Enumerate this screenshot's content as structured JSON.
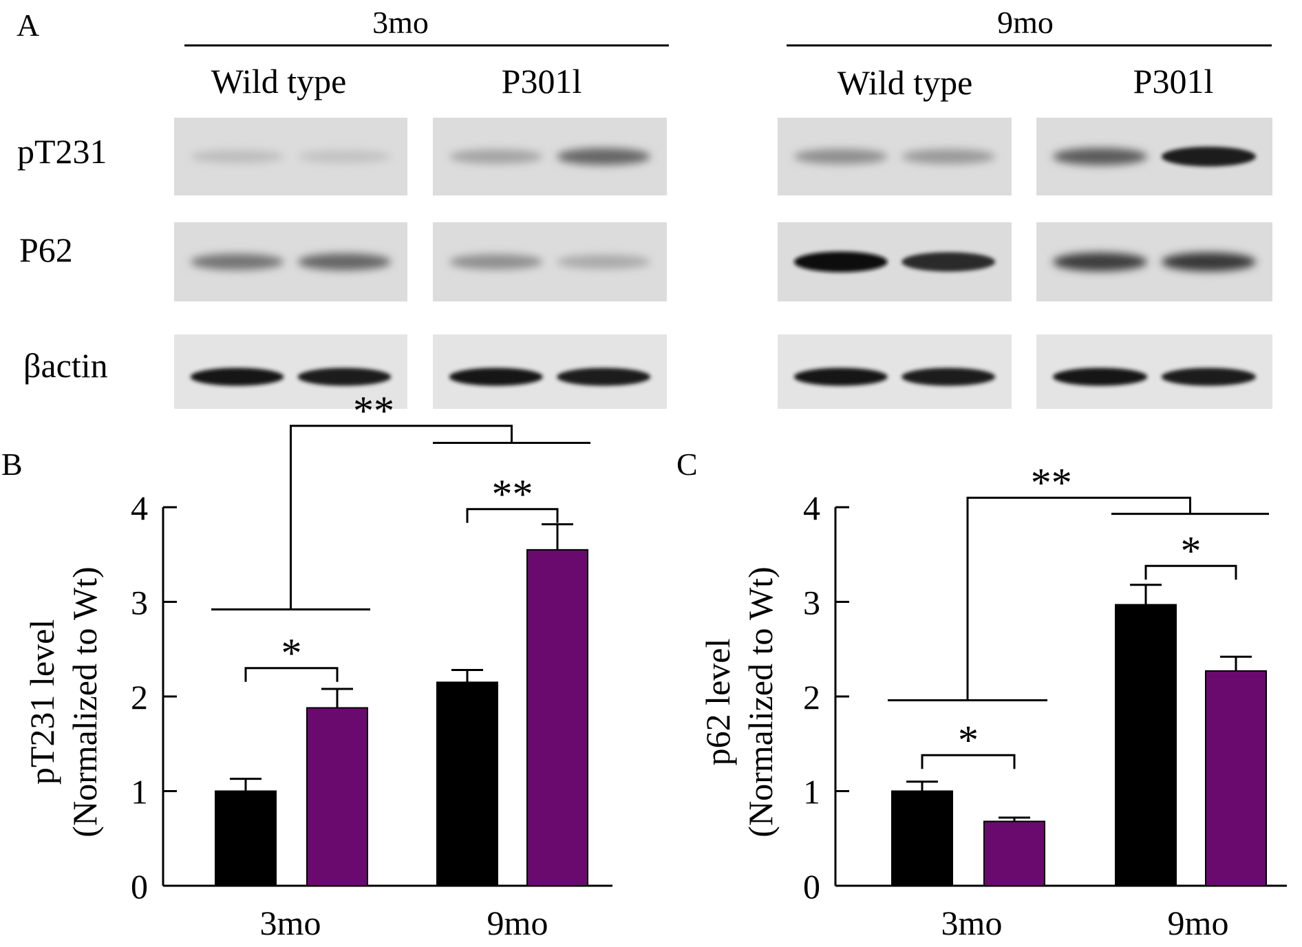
{
  "panels": {
    "a": "A",
    "b": "B",
    "c": "C"
  },
  "blot": {
    "groups": [
      {
        "age": "3mo",
        "wild_type": "Wild type",
        "mutant": "P301l"
      },
      {
        "age": "9mo",
        "wild_type": "Wild type",
        "mutant": "P301l"
      }
    ],
    "rows": [
      {
        "label": "pT231"
      },
      {
        "label": "P62"
      },
      {
        "label": "βactin"
      }
    ],
    "band_intensity": {
      "3mo": {
        "wild_type": [
          [
            0.12,
            0.1
          ],
          [
            0.48,
            0.55
          ],
          [
            0.95,
            0.92
          ]
        ],
        "mutant": [
          [
            0.25,
            0.55
          ],
          [
            0.35,
            0.22
          ],
          [
            0.95,
            0.92
          ]
        ]
      },
      "9mo": {
        "wild_type": [
          [
            0.35,
            0.3
          ],
          [
            1.0,
            0.85
          ],
          [
            0.95,
            0.92
          ]
        ],
        "mutant": [
          [
            0.6,
            0.9
          ],
          [
            0.75,
            0.78
          ],
          [
            0.95,
            0.92
          ]
        ]
      }
    }
  },
  "bar_colors": {
    "wild_type": "#000000",
    "mutant": "#6a0a6e"
  },
  "chart_data": [
    {
      "type": "bar",
      "panel": "B",
      "categories": [
        "3mo",
        "9mo"
      ],
      "series": [
        {
          "values": [
            1.0,
            2.15
          ],
          "errors": [
            0.13,
            0.13
          ]
        },
        {
          "values": [
            1.88,
            3.55
          ],
          "errors": [
            0.2,
            0.27
          ]
        }
      ],
      "ylabel": [
        "pT231 level",
        "(Normalized to Wt)"
      ],
      "ylim": [
        0,
        4
      ],
      "yticks": [
        0,
        1,
        2,
        3,
        4
      ],
      "annotations": [
        {
          "type": "within",
          "category": 0,
          "label": "*",
          "y": 2.3
        },
        {
          "type": "within",
          "category": 1,
          "label": "**",
          "y": 3.98
        },
        {
          "type": "between",
          "label": "**",
          "y1": 2.92,
          "y2": 4.68,
          "y_top": 4.86
        }
      ]
    },
    {
      "type": "bar",
      "panel": "C",
      "categories": [
        "3mo",
        "9mo"
      ],
      "series": [
        {
          "values": [
            1.0,
            2.97
          ],
          "errors": [
            0.1,
            0.21
          ]
        },
        {
          "values": [
            0.68,
            2.27
          ],
          "errors": [
            0.04,
            0.15
          ]
        }
      ],
      "ylabel": [
        "p62 level",
        "(Normalized to Wt)"
      ],
      "ylim": [
        0,
        4
      ],
      "yticks": [
        0,
        1,
        2,
        3,
        4
      ],
      "annotations": [
        {
          "type": "within",
          "category": 0,
          "label": "*",
          "y": 1.38
        },
        {
          "type": "within",
          "category": 1,
          "label": "*",
          "y": 3.38
        },
        {
          "type": "between",
          "label": "**",
          "y1": 1.96,
          "y2": 3.93,
          "y_top": 4.1
        }
      ]
    }
  ]
}
